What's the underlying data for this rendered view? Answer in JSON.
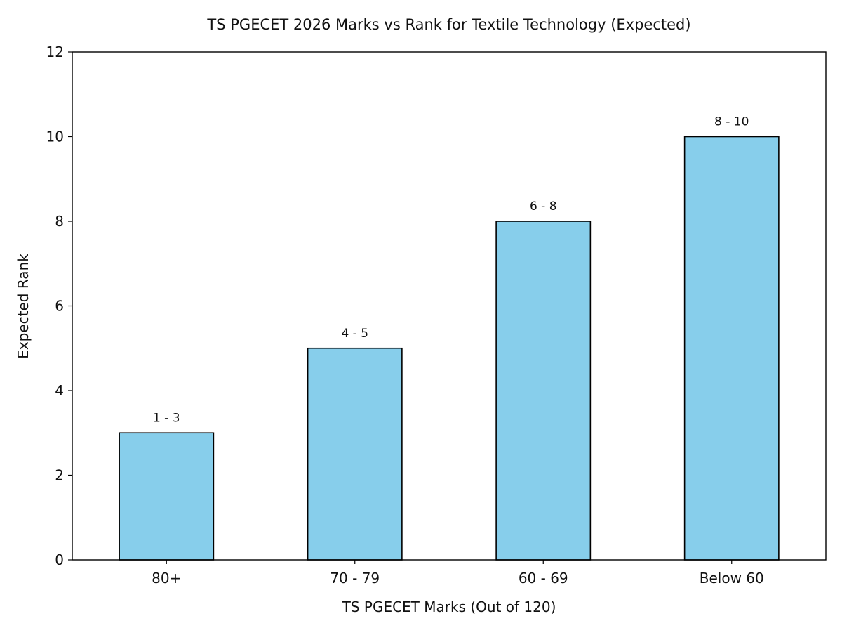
{
  "chart_data": {
    "type": "bar",
    "title": "TS PGECET 2026 Marks vs Rank for Textile Technology (Expected)",
    "xlabel": "TS PGECET Marks (Out of 120)",
    "ylabel": "Expected Rank",
    "categories": [
      "80+",
      "70 - 79",
      "60 - 69",
      "Below 60"
    ],
    "values": [
      3,
      5,
      8,
      10
    ],
    "bar_labels": [
      "1 - 3",
      "4 - 5",
      "6 - 8",
      "8 - 10"
    ],
    "ylim": [
      0,
      12
    ],
    "yticks": [
      0,
      2,
      4,
      6,
      8,
      10,
      12
    ],
    "grid": false,
    "colors": {
      "bar_fill": "#87ceeb",
      "bar_edge": "#000000"
    }
  }
}
